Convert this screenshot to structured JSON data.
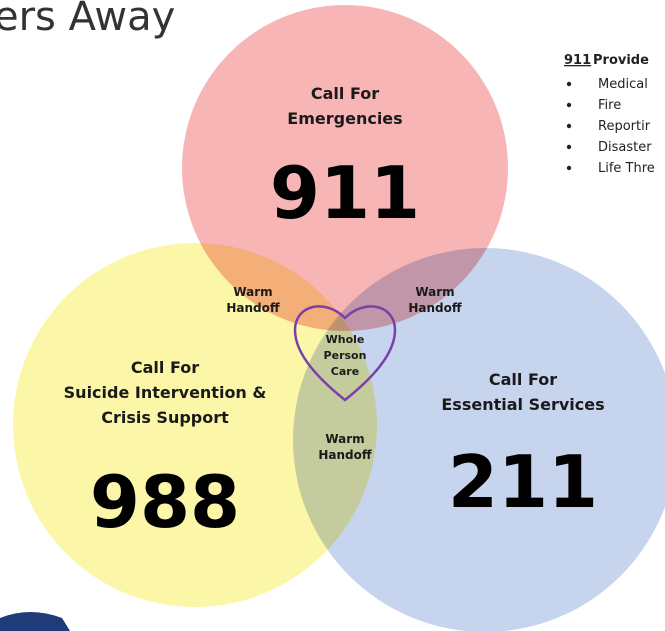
{
  "title": "ers Away",
  "provider_box": {
    "heading_number": "911",
    "heading_text": "Provide",
    "items": [
      "Medical",
      "Fire",
      "Reportir",
      "Disaster",
      "Life Thre"
    ]
  },
  "circles": [
    {
      "label_lines": [
        "Call For",
        "Emergencies"
      ],
      "number": "911"
    },
    {
      "label_lines": [
        "Call For",
        "Suicide Intervention &",
        "Crisis Support"
      ],
      "number": "988"
    },
    {
      "label_lines": [
        "Call For",
        "Essential Services"
      ],
      "number": "211"
    }
  ],
  "overlaps": [
    {
      "label_lines": [
        "Warm",
        "Handoff"
      ]
    },
    {
      "label_lines": [
        "Warm",
        "Handoff"
      ]
    },
    {
      "label_lines": [
        "Warm",
        "Handoff"
      ]
    }
  ],
  "center": {
    "label_lines": [
      "Whole",
      "Person",
      "Care"
    ]
  }
}
